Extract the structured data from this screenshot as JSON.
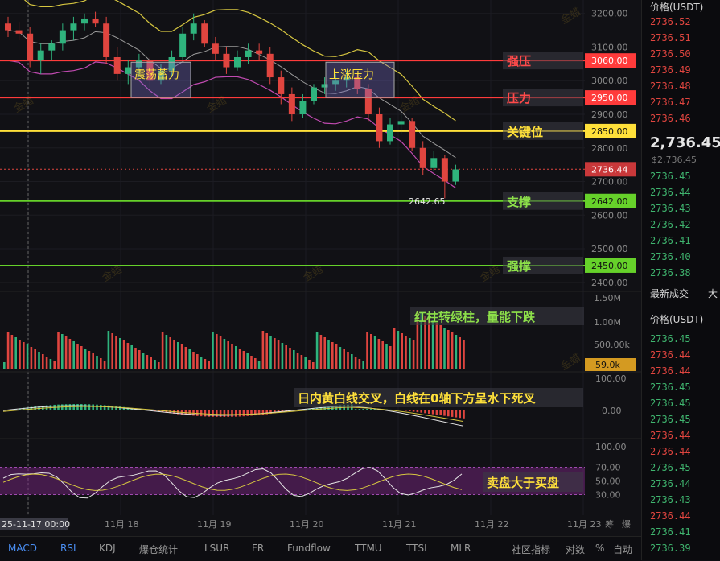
{
  "chart_data": {
    "type": "candlestick",
    "price_axis": {
      "ticks": [
        "3200.00",
        "3100.00",
        "3000.00",
        "2900.00",
        "2800.00",
        "2700.00",
        "2600.00",
        "2500.00",
        "2400.00"
      ],
      "ylim": [
        2390,
        3240
      ]
    },
    "time_axis": {
      "ticks": [
        "11月 18",
        "11月 19",
        "11月 20",
        "11月 21",
        "11月 22",
        "11月 23"
      ],
      "cursor_label": "25-11-17 00:00"
    },
    "price_levels": [
      {
        "label": "强压",
        "value": "3060.00",
        "color": "#ff3b3b",
        "price": 3060
      },
      {
        "label": "压力",
        "value": "2950.00",
        "color": "#ff3b3b",
        "price": 2950
      },
      {
        "label": "关键位",
        "value": "2850.00",
        "color": "#ffe03a",
        "price": 2850
      },
      {
        "label": "支撑",
        "value": "2642.00",
        "color": "#66d12a",
        "price": 2642
      },
      {
        "label": "强撑",
        "value": "2450.00",
        "color": "#66d12a",
        "price": 2450
      }
    ],
    "current_price": {
      "value": "2736.44",
      "price": 2736.44
    },
    "low_marker": "2642.65",
    "boxes": [
      {
        "label": "震荡蓄力"
      },
      {
        "label": "上涨压力"
      }
    ],
    "volume_axis": {
      "ticks": [
        "1.50M",
        "1.00M",
        "500.00k"
      ],
      "current": "59.0k"
    },
    "macd_axis": {
      "ticks": [
        "100.00",
        "0.00"
      ]
    },
    "rsi_axis": {
      "ticks": [
        "100.00",
        "70.00",
        "50.00",
        "30.00"
      ]
    },
    "annotations": {
      "volume": "红柱转绿柱，量能下跌",
      "macd": "日内黄白线交叉，白线在0轴下方呈水下死叉",
      "rsi": "卖盘大于买盘"
    },
    "candles": [
      [
        3170,
        3190,
        3130,
        3150
      ],
      [
        3150,
        3175,
        3120,
        3140
      ],
      [
        3140,
        3160,
        3040,
        3060
      ],
      [
        3060,
        3110,
        3020,
        3090
      ],
      [
        3090,
        3120,
        3060,
        3110
      ],
      [
        3110,
        3170,
        3090,
        3150
      ],
      [
        3150,
        3190,
        3120,
        3170
      ],
      [
        3170,
        3200,
        3150,
        3185
      ],
      [
        3185,
        3205,
        3160,
        3170
      ],
      [
        3170,
        3190,
        3050,
        3070
      ],
      [
        3070,
        3100,
        3000,
        3020
      ],
      [
        3020,
        3060,
        2990,
        3040
      ],
      [
        3040,
        3080,
        3010,
        3060
      ],
      [
        3060,
        3070,
        2980,
        3000
      ],
      [
        3000,
        3050,
        2990,
        3030
      ],
      [
        3030,
        3090,
        3010,
        3070
      ],
      [
        3070,
        3160,
        3060,
        3140
      ],
      [
        3140,
        3200,
        3120,
        3170
      ],
      [
        3170,
        3180,
        3100,
        3110
      ],
      [
        3110,
        3130,
        3060,
        3080
      ],
      [
        3080,
        3100,
        3020,
        3040
      ],
      [
        3040,
        3090,
        3030,
        3070
      ],
      [
        3070,
        3110,
        3050,
        3090
      ],
      [
        3090,
        3110,
        3060,
        3080
      ],
      [
        3080,
        3100,
        2990,
        3010
      ],
      [
        3010,
        3030,
        2930,
        2960
      ],
      [
        2960,
        2980,
        2880,
        2900
      ],
      [
        2900,
        2960,
        2890,
        2940
      ],
      [
        2940,
        2990,
        2930,
        2980
      ],
      [
        2980,
        3010,
        2960,
        2990
      ],
      [
        2990,
        3020,
        2970,
        3000
      ],
      [
        3000,
        3030,
        2980,
        3010
      ],
      [
        3010,
        3020,
        2960,
        2975
      ],
      [
        2975,
        2990,
        2880,
        2900
      ],
      [
        2900,
        2920,
        2800,
        2820
      ],
      [
        2820,
        2890,
        2810,
        2870
      ],
      [
        2870,
        2900,
        2840,
        2880
      ],
      [
        2880,
        2890,
        2790,
        2800
      ],
      [
        2800,
        2820,
        2720,
        2740
      ],
      [
        2740,
        2790,
        2730,
        2770
      ],
      [
        2770,
        2780,
        2650,
        2700
      ],
      [
        2700,
        2750,
        2690,
        2736
      ]
    ],
    "rsi_level_band": [
      30,
      70
    ]
  },
  "sidebar": {
    "header_price": "价格(USDT)",
    "ask_prices": [
      "2736.52",
      "2736.51",
      "2736.50",
      "2736.49",
      "2736.48",
      "2736.47",
      "2736.46"
    ],
    "last_price": "2,736.45",
    "last_price_usd": "$2,736.45",
    "bid_prices": [
      "2736.45",
      "2736.44",
      "2736.43",
      "2736.42",
      "2736.41",
      "2736.40",
      "2736.38"
    ],
    "trades_title": "最新成交",
    "trades_title_right": "大",
    "trades_header": "价格(USDT)",
    "trades": [
      {
        "p": "2736.45",
        "c": "green"
      },
      {
        "p": "2736.44",
        "c": "red"
      },
      {
        "p": "2736.44",
        "c": "red"
      },
      {
        "p": "2736.45",
        "c": "green"
      },
      {
        "p": "2736.45",
        "c": "green"
      },
      {
        "p": "2736.45",
        "c": "green"
      },
      {
        "p": "2736.44",
        "c": "red"
      },
      {
        "p": "2736.44",
        "c": "red"
      },
      {
        "p": "2736.45",
        "c": "green"
      },
      {
        "p": "2736.44",
        "c": "green"
      },
      {
        "p": "2736.43",
        "c": "green"
      },
      {
        "p": "2736.44",
        "c": "red"
      },
      {
        "p": "2736.41",
        "c": "green"
      },
      {
        "p": "2736.39",
        "c": "green"
      }
    ]
  },
  "bottom_tabs": [
    "MACD",
    "RSI",
    "KDJ",
    "爆仓统计",
    "LSUR",
    "FR",
    "Fundflow",
    "TTMU",
    "TTSI",
    "MLR"
  ],
  "bottom_right": [
    "社区指标",
    "对数",
    "%",
    "自动"
  ],
  "time_axis_right": [
    "筹",
    "爆"
  ],
  "watermark": "金蜡"
}
